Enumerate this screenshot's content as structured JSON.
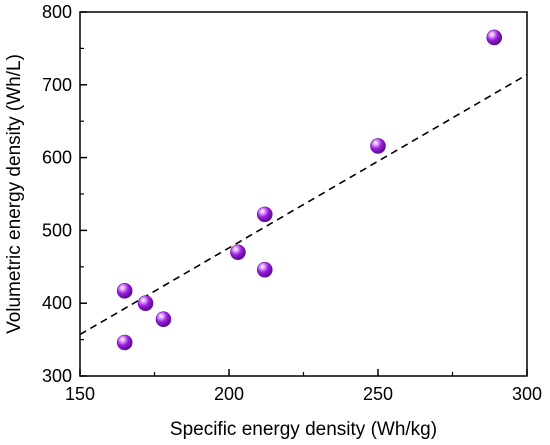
{
  "chart_data": {
    "type": "scatter",
    "title": "",
    "xlabel": "Specific energy density (Wh/kg)",
    "ylabel": "Volumetric energy density (Wh/L)",
    "xlim": [
      150,
      300
    ],
    "ylim": [
      300,
      800
    ],
    "xticks": [
      150,
      200,
      250,
      300
    ],
    "yticks": [
      300,
      400,
      500,
      600,
      700,
      800
    ],
    "xtick_labels": [
      "150",
      "200",
      "250",
      "300"
    ],
    "ytick_labels": [
      "300",
      "400",
      "500",
      "600",
      "700",
      "800"
    ],
    "grid": false,
    "legend": "none",
    "marker_color": "#9b1ee0",
    "trendline": {
      "style": "dashed",
      "x": [
        150,
        300
      ],
      "y": [
        357,
        714
      ]
    },
    "points": [
      {
        "x": 165,
        "y": 417
      },
      {
        "x": 165,
        "y": 346
      },
      {
        "x": 172,
        "y": 400
      },
      {
        "x": 178,
        "y": 378
      },
      {
        "x": 203,
        "y": 470
      },
      {
        "x": 212,
        "y": 522
      },
      {
        "x": 212,
        "y": 446
      },
      {
        "x": 250,
        "y": 616
      },
      {
        "x": 289,
        "y": 765
      }
    ]
  }
}
